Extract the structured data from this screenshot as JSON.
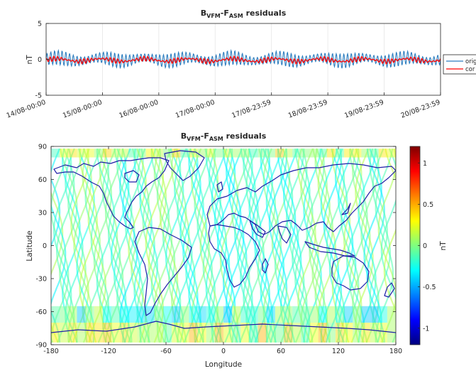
{
  "chart_data": [
    {
      "type": "line",
      "title": {
        "main": "B",
        "sub1": "VFM",
        "mid": "-F",
        "sub2": "ASM",
        "rest": " residuals"
      },
      "xlabel": "",
      "ylabel": "nT",
      "ylim": [
        -5,
        5
      ],
      "yticks": [
        "5",
        "0",
        "-5"
      ],
      "yticks_values": [
        5,
        0,
        -5
      ],
      "xtick_labels": [
        "14/08-00:00",
        "15/08-00:00",
        "16/08-00:00",
        "17/08-00:00",
        "17/08-23:59",
        "18/08-23:59",
        "19/08-23:59",
        "20/08-23:59"
      ],
      "grid": true,
      "legend_placement": "right",
      "series": [
        {
          "name": "orig",
          "color": "#2e7ebf",
          "amplitude": 1.0,
          "mean": 0.0
        },
        {
          "name": "cor",
          "color": "#ff0000",
          "amplitude": 0.35,
          "mean": -0.1
        }
      ]
    },
    {
      "type": "heatmap",
      "title": {
        "main": "B",
        "sub1": "VFM",
        "mid": "-F",
        "sub2": "ASM",
        "rest": " residuals"
      },
      "xlabel": "Longitude",
      "ylabel": "Latitude",
      "xlim": [
        -180,
        180
      ],
      "ylim": [
        -90,
        90
      ],
      "xticks": [
        "-180",
        "-120",
        "-60",
        "0",
        "60",
        "120",
        "180"
      ],
      "xticks_values": [
        -180,
        -120,
        -60,
        0,
        60,
        120,
        180
      ],
      "yticks": [
        "90",
        "60",
        "30",
        "0",
        "-30",
        "-60",
        "-90"
      ],
      "yticks_values": [
        90,
        60,
        30,
        0,
        -30,
        -60,
        -90
      ],
      "coastline_color": "#1f1fa8",
      "colorbar": {
        "label": "nT",
        "range": [
          -1.2,
          1.2
        ],
        "ticks": [
          "1",
          "0.5",
          "0",
          "-0.5",
          "-1"
        ],
        "ticks_values": [
          1,
          0.5,
          0,
          -0.5,
          -1
        ],
        "colormap": "jet"
      }
    }
  ]
}
